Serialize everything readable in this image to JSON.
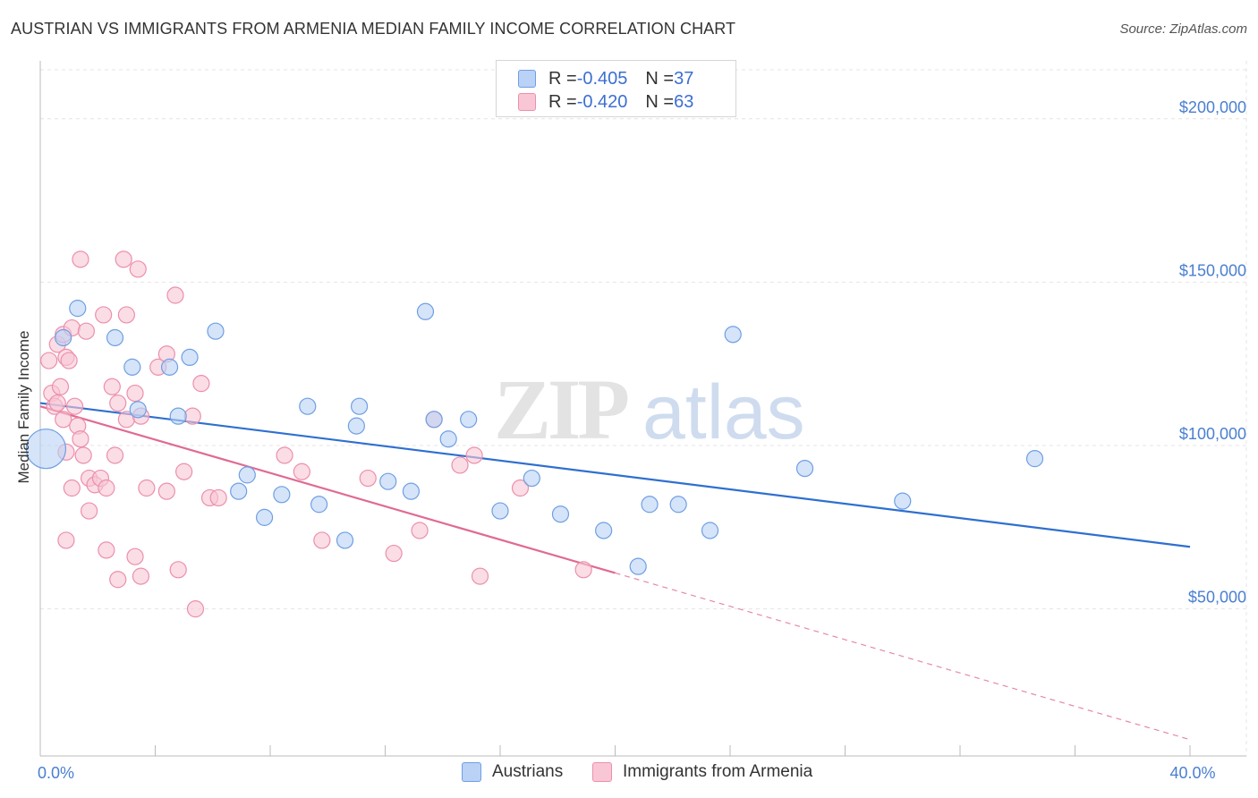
{
  "title": "AUSTRIAN VS IMMIGRANTS FROM ARMENIA MEDIAN FAMILY INCOME CORRELATION CHART",
  "source": "Source: ZipAtlas.com",
  "watermark": {
    "zip": "ZIP",
    "atlas": "atlas"
  },
  "legend_top": {
    "rows": [
      {
        "r_label": "R = ",
        "r_value": "-0.405",
        "n_label": "N = ",
        "n_value": "37",
        "color": "#b9d2f5"
      },
      {
        "r_label": "R = ",
        "r_value": "-0.420",
        "n_label": "N = ",
        "n_value": "63",
        "color": "#f9c6d6"
      }
    ]
  },
  "legend_bottom": [
    {
      "label": "Austrians",
      "color": "#b9d2f5"
    },
    {
      "label": "Immigrants from Armenia",
      "color": "#f9c6d6"
    }
  ],
  "chart_data": {
    "type": "scatter",
    "ylabel": "Median Family Income",
    "xlabel": "",
    "xlim": [
      0,
      40
    ],
    "ylim": [
      5000,
      215000
    ],
    "x_tick_labels": [
      {
        "value": 0,
        "label": "0.0%"
      },
      {
        "value": 40,
        "label": "40.0%"
      }
    ],
    "y_tick_labels": [
      {
        "value": 50000,
        "label": "$50,000"
      },
      {
        "value": 100000,
        "label": "$100,000"
      },
      {
        "value": 150000,
        "label": "$150,000"
      },
      {
        "value": 200000,
        "label": "$200,000"
      }
    ],
    "grid": true,
    "legend": "top-center",
    "series": [
      {
        "name": "Austrians",
        "color": "#6e9fe3",
        "fill": "#b9d2f5",
        "trend": {
          "x0": 0,
          "y0": 113000,
          "x1": 40,
          "y1": 69000,
          "color": "#2f6fd0"
        },
        "points": [
          [
            0.2,
            99000
          ],
          [
            1.3,
            142000
          ],
          [
            0.8,
            133000
          ],
          [
            2.6,
            133000
          ],
          [
            3.2,
            124000
          ],
          [
            3.4,
            111000
          ],
          [
            4.8,
            109000
          ],
          [
            6.1,
            135000
          ],
          [
            4.5,
            124000
          ],
          [
            5.2,
            127000
          ],
          [
            7.2,
            91000
          ],
          [
            8.4,
            85000
          ],
          [
            6.9,
            86000
          ],
          [
            9.7,
            82000
          ],
          [
            7.8,
            78000
          ],
          [
            11.1,
            112000
          ],
          [
            9.3,
            112000
          ],
          [
            11.0,
            106000
          ],
          [
            10.6,
            71000
          ],
          [
            12.1,
            89000
          ],
          [
            12.9,
            86000
          ],
          [
            13.7,
            108000
          ],
          [
            14.2,
            102000
          ],
          [
            14.9,
            108000
          ],
          [
            13.4,
            141000
          ],
          [
            16.0,
            80000
          ],
          [
            17.1,
            90000
          ],
          [
            18.1,
            79000
          ],
          [
            19.6,
            74000
          ],
          [
            21.2,
            82000
          ],
          [
            22.2,
            82000
          ],
          [
            20.8,
            63000
          ],
          [
            23.3,
            74000
          ],
          [
            26.6,
            93000
          ],
          [
            24.1,
            134000
          ],
          [
            30.0,
            83000
          ],
          [
            34.6,
            96000
          ]
        ]
      },
      {
        "name": "Immigrants from Armenia",
        "color": "#ec8fab",
        "fill": "#f9c6d6",
        "trend": {
          "x0": 0,
          "y0": 112000,
          "x1": 20,
          "y1": 61000,
          "color": "#e06a92",
          "dash_to": {
            "x": 40,
            "y": 10000
          }
        },
        "points": [
          [
            0.3,
            126000
          ],
          [
            0.4,
            116000
          ],
          [
            0.5,
            112000
          ],
          [
            0.6,
            131000
          ],
          [
            0.8,
            134000
          ],
          [
            0.9,
            127000
          ],
          [
            1.0,
            126000
          ],
          [
            0.6,
            113000
          ],
          [
            0.8,
            108000
          ],
          [
            1.1,
            136000
          ],
          [
            1.2,
            112000
          ],
          [
            1.3,
            106000
          ],
          [
            1.4,
            102000
          ],
          [
            0.9,
            98000
          ],
          [
            1.5,
            97000
          ],
          [
            1.7,
            90000
          ],
          [
            1.9,
            88000
          ],
          [
            1.1,
            87000
          ],
          [
            2.1,
            90000
          ],
          [
            1.7,
            80000
          ],
          [
            2.5,
            118000
          ],
          [
            2.7,
            113000
          ],
          [
            3.0,
            108000
          ],
          [
            2.6,
            97000
          ],
          [
            2.3,
            87000
          ],
          [
            3.3,
            116000
          ],
          [
            3.5,
            109000
          ],
          [
            3.7,
            87000
          ],
          [
            4.1,
            124000
          ],
          [
            4.4,
            128000
          ],
          [
            4.7,
            146000
          ],
          [
            4.4,
            86000
          ],
          [
            5.0,
            92000
          ],
          [
            5.3,
            109000
          ],
          [
            5.6,
            119000
          ],
          [
            5.9,
            84000
          ],
          [
            6.2,
            84000
          ],
          [
            1.4,
            157000
          ],
          [
            2.9,
            157000
          ],
          [
            3.4,
            154000
          ],
          [
            2.2,
            140000
          ],
          [
            0.9,
            71000
          ],
          [
            2.3,
            68000
          ],
          [
            3.3,
            66000
          ],
          [
            2.7,
            59000
          ],
          [
            3.5,
            60000
          ],
          [
            4.8,
            62000
          ],
          [
            5.4,
            50000
          ],
          [
            8.5,
            97000
          ],
          [
            9.1,
            92000
          ],
          [
            9.8,
            71000
          ],
          [
            11.4,
            90000
          ],
          [
            12.3,
            67000
          ],
          [
            13.2,
            74000
          ],
          [
            14.6,
            94000
          ],
          [
            15.1,
            97000
          ],
          [
            15.3,
            60000
          ],
          [
            16.7,
            87000
          ],
          [
            18.9,
            62000
          ],
          [
            13.7,
            108000
          ],
          [
            3.0,
            140000
          ],
          [
            1.6,
            135000
          ],
          [
            0.7,
            118000
          ]
        ]
      }
    ]
  }
}
